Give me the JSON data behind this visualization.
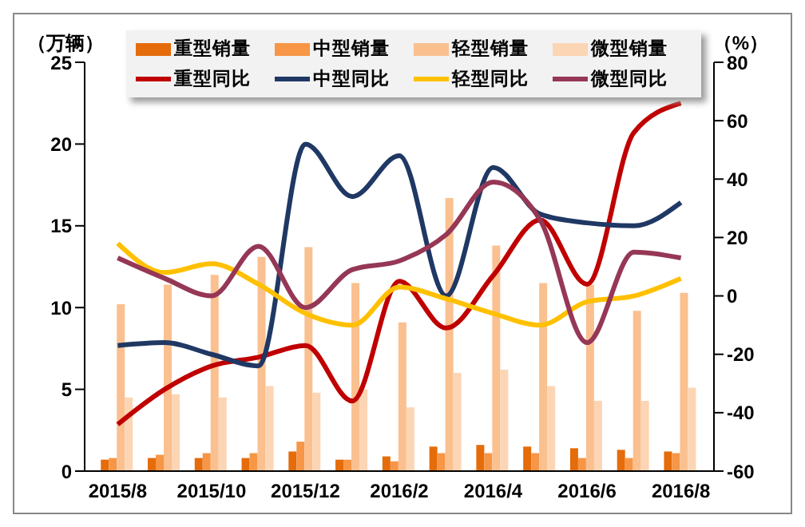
{
  "chart_data": {
    "type": "bar",
    "categories": [
      "2015/8",
      null,
      "2015/10",
      null,
      "2015/12",
      null,
      "2016/2",
      null,
      "2016/4",
      null,
      "2016/6",
      null,
      "2016/8"
    ],
    "ylabel": "（万辆）",
    "y2label": "（%）",
    "ylim": [
      0,
      25
    ],
    "yticks": [
      0,
      5,
      10,
      15,
      20,
      25
    ],
    "y2lim": [
      -60,
      80
    ],
    "y2ticks": [
      -60,
      -40,
      -20,
      0,
      20,
      40,
      60,
      80
    ],
    "legend": "top",
    "grid": false,
    "series": [
      {
        "name": "重型销量",
        "color": "#e46c0a",
        "values": [
          0.7,
          0.8,
          0.8,
          0.8,
          1.2,
          0.7,
          0.9,
          1.5,
          1.6,
          1.5,
          1.4,
          1.3,
          1.2
        ]
      },
      {
        "name": "中型销量",
        "color": "#f79646",
        "values": [
          0.8,
          1.0,
          1.1,
          1.1,
          1.8,
          0.7,
          0.6,
          1.1,
          1.1,
          1.1,
          0.8,
          0.8,
          1.1
        ]
      },
      {
        "name": "轻型销量",
        "color": "#fac090",
        "values": [
          10.2,
          11.4,
          12.0,
          13.1,
          13.7,
          11.5,
          9.1,
          16.7,
          13.8,
          11.5,
          11.4,
          9.8,
          10.9
        ]
      },
      {
        "name": "微型销量",
        "color": "#fcd5b5",
        "values": [
          4.5,
          4.7,
          4.5,
          5.2,
          4.8,
          5.0,
          3.9,
          6.0,
          6.2,
          5.2,
          4.3,
          4.3,
          5.1
        ]
      },
      {
        "name": "重型同比",
        "type": "line",
        "axis": "y2",
        "color": "#c00000",
        "values": [
          -44,
          -32,
          -24,
          -21,
          -17,
          -36,
          5,
          -11,
          7,
          26,
          4,
          56,
          66
        ]
      },
      {
        "name": "中型同比",
        "type": "line",
        "axis": "y2",
        "color": "#1f3864",
        "values": [
          -17,
          -16,
          -20,
          -24,
          52,
          34,
          48,
          0,
          44,
          28,
          25,
          24,
          32
        ]
      },
      {
        "name": "轻型同比",
        "type": "line",
        "axis": "y2",
        "color": "#ffc000",
        "values": [
          18,
          8,
          11,
          4,
          -6,
          -10,
          3,
          -1,
          -6,
          -10,
          -2,
          0,
          6
        ]
      },
      {
        "name": "微型同比",
        "type": "line",
        "axis": "y2",
        "color": "#953755",
        "values": [
          13,
          6,
          0,
          17,
          -4,
          9,
          12,
          21,
          39,
          26,
          -16,
          15,
          13
        ]
      }
    ]
  }
}
